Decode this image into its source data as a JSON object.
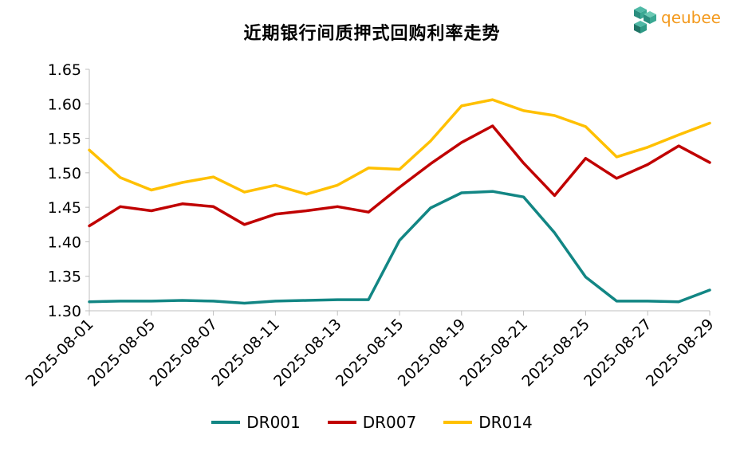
{
  "logo": {
    "brand": "qeubee",
    "icon": "qeubee-cube-logo",
    "color": "#f39a1e"
  },
  "chart_data": {
    "type": "line",
    "title": "近期银行间质押式回购利率走势",
    "xlabel": "",
    "ylabel": "",
    "ylim": [
      1.3,
      1.65
    ],
    "yticks": [
      "1.65",
      "1.60",
      "1.55",
      "1.50",
      "1.45",
      "1.40",
      "1.35",
      "1.30"
    ],
    "ytick_values": [
      1.65,
      1.6,
      1.55,
      1.5,
      1.45,
      1.4,
      1.35,
      1.3
    ],
    "x": [
      "2025-08-01",
      "2025-08-04",
      "2025-08-05",
      "2025-08-06",
      "2025-08-07",
      "2025-08-08",
      "2025-08-11",
      "2025-08-12",
      "2025-08-13",
      "2025-08-14",
      "2025-08-15",
      "2025-08-18",
      "2025-08-19",
      "2025-08-20",
      "2025-08-21",
      "2025-08-22",
      "2025-08-25",
      "2025-08-26",
      "2025-08-27",
      "2025-08-28",
      "2025-08-29"
    ],
    "xticks": [
      "2025-08-01",
      "2025-08-05",
      "2025-08-07",
      "2025-08-11",
      "2025-08-13",
      "2025-08-15",
      "2025-08-19",
      "2025-08-21",
      "2025-08-25",
      "2025-08-27",
      "2025-08-29"
    ],
    "xtick_indices": [
      0,
      2,
      4,
      6,
      8,
      10,
      12,
      14,
      16,
      18,
      20
    ],
    "legend_position": "bottom",
    "series": [
      {
        "name": "DR001",
        "color": "#128684",
        "values": [
          1.313,
          1.314,
          1.314,
          1.315,
          1.314,
          1.311,
          1.314,
          1.315,
          1.316,
          1.316,
          1.402,
          1.449,
          1.471,
          1.473,
          1.465,
          1.413,
          1.349,
          1.314,
          1.314,
          1.313,
          1.33
        ]
      },
      {
        "name": "DR007",
        "color": "#c00000",
        "values": [
          1.423,
          1.451,
          1.445,
          1.455,
          1.451,
          1.425,
          1.44,
          1.445,
          1.451,
          1.443,
          1.479,
          1.513,
          1.544,
          1.568,
          1.514,
          1.467,
          1.521,
          1.492,
          1.512,
          1.539,
          1.515
        ]
      },
      {
        "name": "DR014",
        "color": "#ffc000",
        "values": [
          1.533,
          1.493,
          1.475,
          1.486,
          1.494,
          1.472,
          1.482,
          1.469,
          1.482,
          1.507,
          1.505,
          1.546,
          1.597,
          1.606,
          1.59,
          1.583,
          1.567,
          1.523,
          1.537,
          1.555,
          1.572
        ]
      }
    ]
  }
}
